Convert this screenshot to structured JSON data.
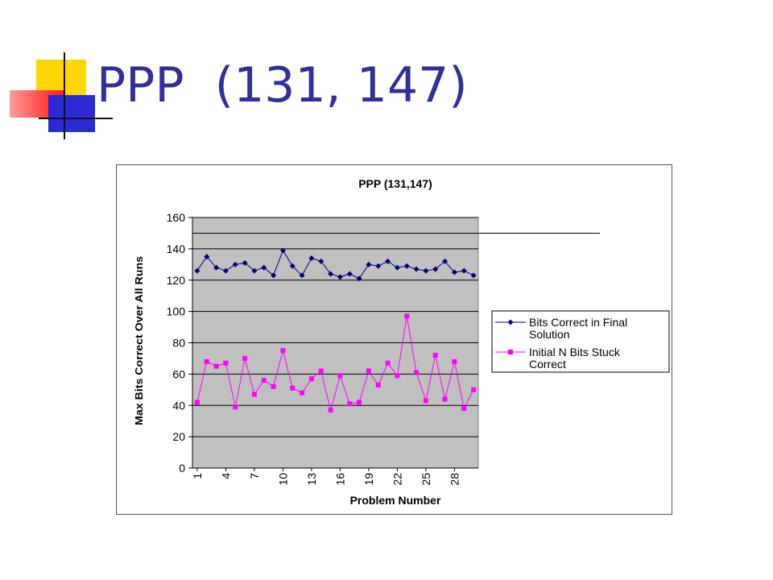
{
  "slide": {
    "title": "PPP  (131, 147)"
  },
  "colors": {
    "title": "#2f2fa0",
    "plot_bg": "#c0c0c0",
    "series_final": "#000080",
    "series_initial": "#ff00ff"
  },
  "chart_data": {
    "type": "line",
    "title": "PPP (131,147)",
    "xlabel": "Problem Number",
    "ylabel": "Max Bits Correct Over All Runs",
    "ylim": [
      0,
      160
    ],
    "yticks": [
      0,
      20,
      40,
      60,
      80,
      100,
      120,
      140,
      160
    ],
    "x": [
      1,
      2,
      3,
      4,
      5,
      6,
      7,
      8,
      9,
      10,
      11,
      12,
      13,
      14,
      15,
      16,
      17,
      18,
      19,
      20,
      21,
      22,
      23,
      24,
      25,
      26,
      27,
      28,
      29,
      30
    ],
    "xtick_labels": [
      "1",
      "4",
      "7",
      "10",
      "13",
      "16",
      "19",
      "22",
      "25",
      "28"
    ],
    "grid": true,
    "legend_position": "right",
    "reference_line": 150,
    "series": [
      {
        "name": "Bits Correct in Final Solution",
        "marker": "diamond",
        "values": [
          126,
          135,
          128,
          126,
          130,
          131,
          126,
          128,
          123,
          139,
          129,
          123,
          134,
          132,
          124,
          122,
          124,
          121,
          130,
          129,
          132,
          128,
          129,
          127,
          126,
          127,
          132,
          125,
          126,
          123
        ]
      },
      {
        "name": "Initial N Bits Stuck Correct",
        "marker": "square",
        "values": [
          42,
          68,
          65,
          67,
          39,
          70,
          47,
          56,
          52,
          75,
          51,
          48,
          57,
          62,
          37,
          59,
          41,
          42,
          62,
          53,
          67,
          59,
          97,
          61,
          43,
          72,
          44,
          68,
          38,
          50
        ]
      }
    ]
  }
}
